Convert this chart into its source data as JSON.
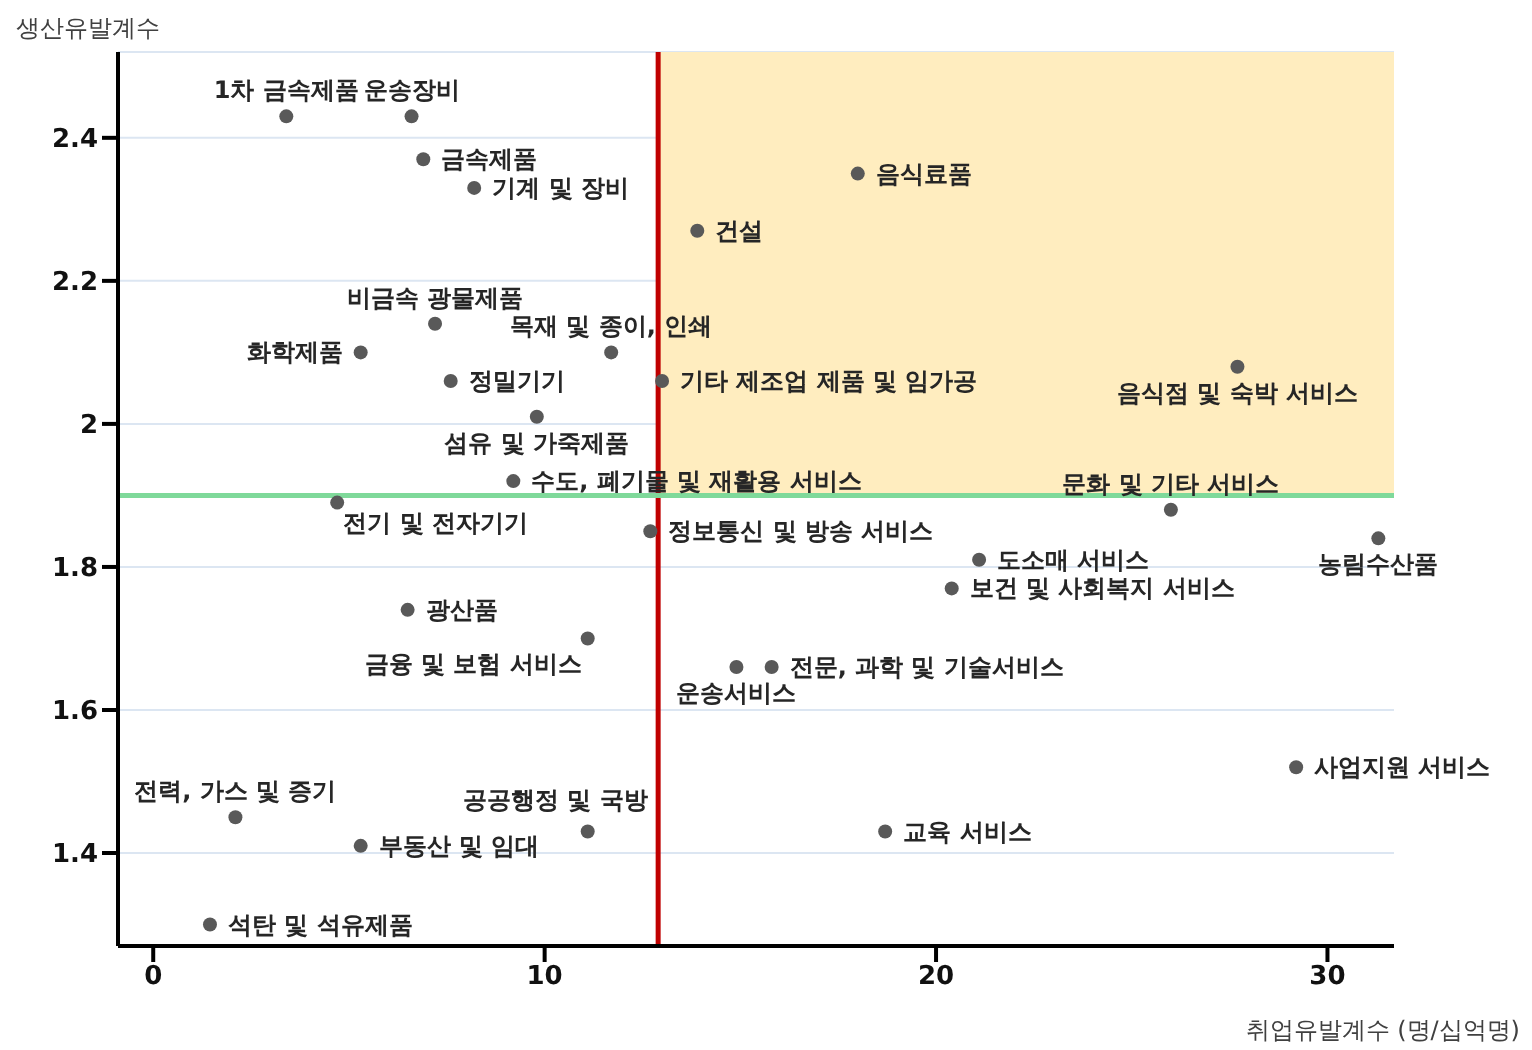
{
  "chart_data": {
    "type": "scatter",
    "xlabel": "취업유발계수 (명/십억명)",
    "ylabel": "생산유발계수",
    "series": [
      {
        "color": "#595959",
        "x": [
          3.4,
          6.6,
          6.9,
          8.2,
          13.9,
          18.0,
          7.2,
          5.3,
          11.7,
          7.6,
          13.0,
          27.7,
          9.8,
          9.2,
          4.7,
          12.7,
          26.0,
          31.3,
          21.1,
          20.4,
          6.5,
          11.1,
          14.9,
          15.8,
          29.2,
          2.1,
          5.3,
          11.1,
          18.7,
          1.45
        ],
        "values": [
          2.43,
          2.43,
          2.37,
          2.33,
          2.27,
          2.35,
          2.14,
          2.1,
          2.1,
          2.06,
          2.06,
          2.08,
          2.01,
          1.92,
          1.89,
          1.85,
          1.88,
          1.84,
          1.81,
          1.77,
          1.74,
          1.7,
          1.66,
          1.66,
          1.52,
          1.45,
          1.41,
          1.43,
          1.43,
          1.3
        ]
      }
    ],
    "annotations": [
      {
        "text": "1차 금속제품",
        "x": 3.4,
        "y": 2.43
      },
      {
        "text": "운송장비",
        "x": 6.6,
        "y": 2.43
      },
      {
        "text": "금속제품",
        "x": 6.9,
        "y": 2.37
      },
      {
        "text": "기계 및 장비",
        "x": 8.2,
        "y": 2.33
      },
      {
        "text": "건설",
        "x": 13.9,
        "y": 2.27
      },
      {
        "text": "음식료품",
        "x": 18.0,
        "y": 2.35
      },
      {
        "text": "비금속 광물제품",
        "x": 7.2,
        "y": 2.14
      },
      {
        "text": "화학제품",
        "x": 5.3,
        "y": 2.1
      },
      {
        "text": "목재 및 종이, 인쇄",
        "x": 11.7,
        "y": 2.1
      },
      {
        "text": "정밀기기",
        "x": 7.6,
        "y": 2.06
      },
      {
        "text": "기타 제조업 제품 및 임가공",
        "x": 13.0,
        "y": 2.06
      },
      {
        "text": "음식점 및 숙박 서비스",
        "x": 27.7,
        "y": 2.08
      },
      {
        "text": "섬유 및 가죽제품",
        "x": 9.8,
        "y": 2.01
      },
      {
        "text": "수도, 폐기물 및 재활용 서비스",
        "x": 9.2,
        "y": 1.92
      },
      {
        "text": "전기 및 전자기기",
        "x": 4.7,
        "y": 1.89
      },
      {
        "text": "정보통신 및 방송 서비스",
        "x": 12.7,
        "y": 1.85
      },
      {
        "text": "문화 및 기타 서비스",
        "x": 26.0,
        "y": 1.88
      },
      {
        "text": "농림수산품",
        "x": 31.3,
        "y": 1.84
      },
      {
        "text": "도소매 서비스",
        "x": 21.1,
        "y": 1.81
      },
      {
        "text": "보건 및 사회복지 서비스",
        "x": 20.4,
        "y": 1.77
      },
      {
        "text": "광산품",
        "x": 6.5,
        "y": 1.74
      },
      {
        "text": "금융 및 보험 서비스",
        "x": 11.1,
        "y": 1.7
      },
      {
        "text": "운송서비스",
        "x": 14.9,
        "y": 1.66
      },
      {
        "text": "전문, 과학 및 기술서비스",
        "x": 15.8,
        "y": 1.66
      },
      {
        "text": "사업지원 서비스",
        "x": 29.2,
        "y": 1.52
      },
      {
        "text": "전력, 가스 및 증기",
        "x": 2.1,
        "y": 1.45
      },
      {
        "text": "부동산 및 임대",
        "x": 5.3,
        "y": 1.41
      },
      {
        "text": "공공행정 및 국방",
        "x": 11.1,
        "y": 1.43
      },
      {
        "text": "교육 서비스",
        "x": 18.7,
        "y": 1.43
      },
      {
        "text": "석탄 및 석유제품",
        "x": 1.45,
        "y": 1.3
      }
    ],
    "xlim": [
      -0.9,
      31.7
    ],
    "xticks": [
      0,
      10,
      20,
      30
    ],
    "ylim": [
      1.27,
      2.52
    ],
    "yticks": [
      1.4,
      1.6,
      1.8,
      2,
      2.2,
      2.4
    ],
    "grid": "y",
    "marker": "circle",
    "ref_lines": [
      {
        "axis": "x",
        "value": 12.9,
        "color": "#c00000"
      },
      {
        "axis": "y",
        "value": 1.9,
        "color": "#7fd99a"
      }
    ],
    "bands": [
      {
        "axis": "x",
        "from": 12.9,
        "to": 31.7,
        "color": "#ffedbf"
      }
    ]
  }
}
